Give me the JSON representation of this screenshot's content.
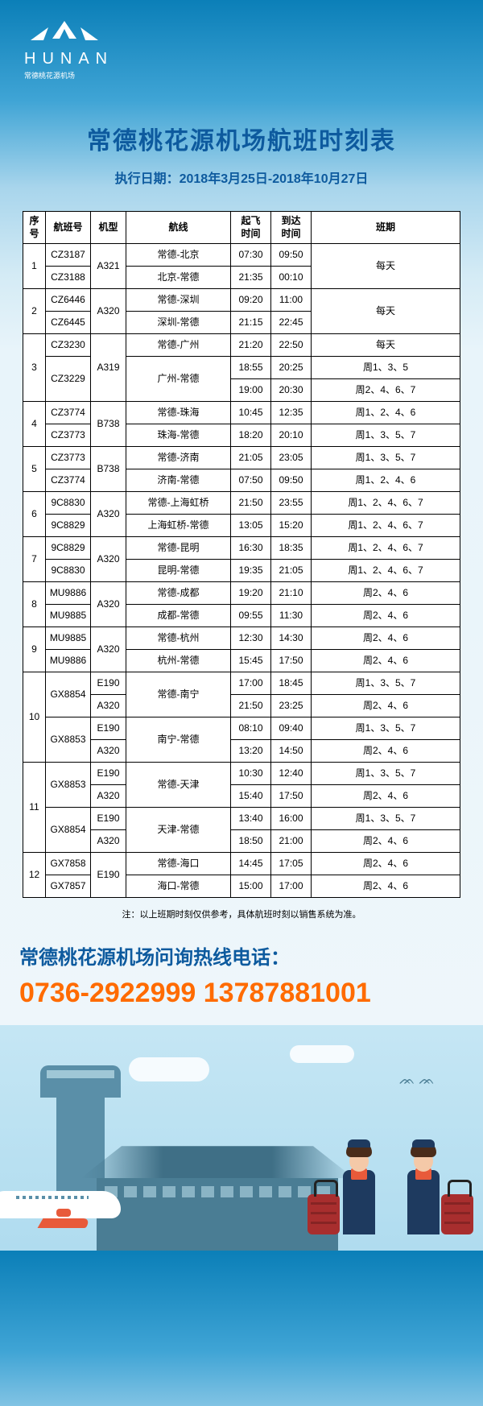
{
  "header": {
    "logo_text": "HUNAN",
    "logo_sub": "常德桃花源机场"
  },
  "title": "常德桃花源机场航班时刻表",
  "subtitle": "执行日期：2018年3月25日-2018年10月27日",
  "columns": {
    "seq": "序号",
    "flight": "航班号",
    "aircraft": "机型",
    "route": "航线",
    "dep": "起飞\n时间",
    "arr": "到达\n时间",
    "days": "班期"
  },
  "rows": [
    {
      "seq": "1",
      "flight": "CZ3187",
      "aircraft": "A321",
      "route": "常德-北京",
      "dep": "07:30",
      "arr": "09:50",
      "days": "每天",
      "seq_rs": 2,
      "aircraft_rs": 2,
      "days_rs": 2
    },
    {
      "flight": "CZ3188",
      "route": "北京-常德",
      "dep": "21:35",
      "arr": "00:10"
    },
    {
      "seq": "2",
      "flight": "CZ6446",
      "aircraft": "A320",
      "route": "常德-深圳",
      "dep": "09:20",
      "arr": "11:00",
      "days": "每天",
      "seq_rs": 2,
      "aircraft_rs": 2,
      "days_rs": 2
    },
    {
      "flight": "CZ6445",
      "route": "深圳-常德",
      "dep": "21:15",
      "arr": "22:45"
    },
    {
      "seq": "3",
      "flight": "CZ3230",
      "aircraft": "A319",
      "route": "常德-广州",
      "dep": "21:20",
      "arr": "22:50",
      "days": "每天",
      "seq_rs": 3,
      "aircraft_rs": 3
    },
    {
      "flight": "CZ3229",
      "route": "广州-常德",
      "dep": "18:55",
      "arr": "20:25",
      "days": "周1、3、5",
      "flight_rs": 2,
      "route_rs": 2
    },
    {
      "dep": "19:00",
      "arr": "20:30",
      "days": "周2、4、6、7"
    },
    {
      "seq": "4",
      "flight": "CZ3774",
      "aircraft": "B738",
      "route": "常德-珠海",
      "dep": "10:45",
      "arr": "12:35",
      "days": "周1、2、4、6",
      "seq_rs": 2,
      "aircraft_rs": 2
    },
    {
      "flight": "CZ3773",
      "route": "珠海-常德",
      "dep": "18:20",
      "arr": "20:10",
      "days": "周1、3、5、7"
    },
    {
      "seq": "5",
      "flight": "CZ3773",
      "aircraft": "B738",
      "route": "常德-济南",
      "dep": "21:05",
      "arr": "23:05",
      "days": "周1、3、5、7",
      "seq_rs": 2,
      "aircraft_rs": 2
    },
    {
      "flight": "CZ3774",
      "route": "济南-常德",
      "dep": "07:50",
      "arr": "09:50",
      "days": "周1、2、4、6"
    },
    {
      "seq": "6",
      "flight": "9C8830",
      "aircraft": "A320",
      "route": "常德-上海虹桥",
      "dep": "21:50",
      "arr": "23:55",
      "days": "周1、2、4、6、7",
      "seq_rs": 2,
      "aircraft_rs": 2
    },
    {
      "flight": "9C8829",
      "route": "上海虹桥-常德",
      "dep": "13:05",
      "arr": "15:20",
      "days": "周1、2、4、6、7"
    },
    {
      "seq": "7",
      "flight": "9C8829",
      "aircraft": "A320",
      "route": "常德-昆明",
      "dep": "16:30",
      "arr": "18:35",
      "days": "周1、2、4、6、7",
      "seq_rs": 2,
      "aircraft_rs": 2
    },
    {
      "flight": "9C8830",
      "route": "昆明-常德",
      "dep": "19:35",
      "arr": "21:05",
      "days": "周1、2、4、6、7"
    },
    {
      "seq": "8",
      "flight": "MU9886",
      "aircraft": "A320",
      "route": "常德-成都",
      "dep": "19:20",
      "arr": "21:10",
      "days": "周2、4、6",
      "seq_rs": 2,
      "aircraft_rs": 2
    },
    {
      "flight": "MU9885",
      "route": "成都-常德",
      "dep": "09:55",
      "arr": "11:30",
      "days": "周2、4、6"
    },
    {
      "seq": "9",
      "flight": "MU9885",
      "aircraft": "A320",
      "route": "常德-杭州",
      "dep": "12:30",
      "arr": "14:30",
      "days": "周2、4、6",
      "seq_rs": 2,
      "aircraft_rs": 2
    },
    {
      "flight": "MU9886",
      "route": "杭州-常德",
      "dep": "15:45",
      "arr": "17:50",
      "days": "周2、4、6"
    },
    {
      "seq": "10",
      "flight": "GX8854",
      "aircraft": "E190",
      "route": "常德-南宁",
      "dep": "17:00",
      "arr": "18:45",
      "days": "周1、3、5、7",
      "seq_rs": 4,
      "flight_rs": 2,
      "route_rs": 2
    },
    {
      "aircraft": "A320",
      "dep": "21:50",
      "arr": "23:25",
      "days": "周2、4、6"
    },
    {
      "flight": "GX8853",
      "aircraft": "E190",
      "route": "南宁-常德",
      "dep": "08:10",
      "arr": "09:40",
      "days": "周1、3、5、7",
      "flight_rs": 2,
      "route_rs": 2
    },
    {
      "aircraft": "A320",
      "dep": "13:20",
      "arr": "14:50",
      "days": "周2、4、6"
    },
    {
      "seq": "11",
      "flight": "GX8853",
      "aircraft": "E190",
      "route": "常德-天津",
      "dep": "10:30",
      "arr": "12:40",
      "days": "周1、3、5、7",
      "seq_rs": 4,
      "flight_rs": 2,
      "route_rs": 2
    },
    {
      "aircraft": "A320",
      "dep": "15:40",
      "arr": "17:50",
      "days": "周2、4、6"
    },
    {
      "flight": "GX8854",
      "aircraft": "E190",
      "route": "天津-常德",
      "dep": "13:40",
      "arr": "16:00",
      "days": "周1、3、5、7",
      "flight_rs": 2,
      "route_rs": 2
    },
    {
      "aircraft": "A320",
      "dep": "18:50",
      "arr": "21:00",
      "days": "周2、4、6"
    },
    {
      "seq": "12",
      "flight": "GX7858",
      "aircraft": "E190",
      "route": "常德-海口",
      "dep": "14:45",
      "arr": "17:05",
      "days": "周2、4、6",
      "seq_rs": 2,
      "aircraft_rs": 2
    },
    {
      "flight": "GX7857",
      "route": "海口-常德",
      "dep": "15:00",
      "arr": "17:00",
      "days": "周2、4、6"
    }
  ],
  "note": "注：以上班期时刻仅供参考，具体航班时刻以销售系统为准。",
  "hotline_label": "常德桃花源机场问询热线电话：",
  "hotline_numbers": "0736-2922999  13787881001",
  "colors": {
    "title": "#0d5a9e",
    "hotline": "#ff6b00",
    "bg_top": "#0b7fb8",
    "bg_mid": "#d4ebf5"
  }
}
